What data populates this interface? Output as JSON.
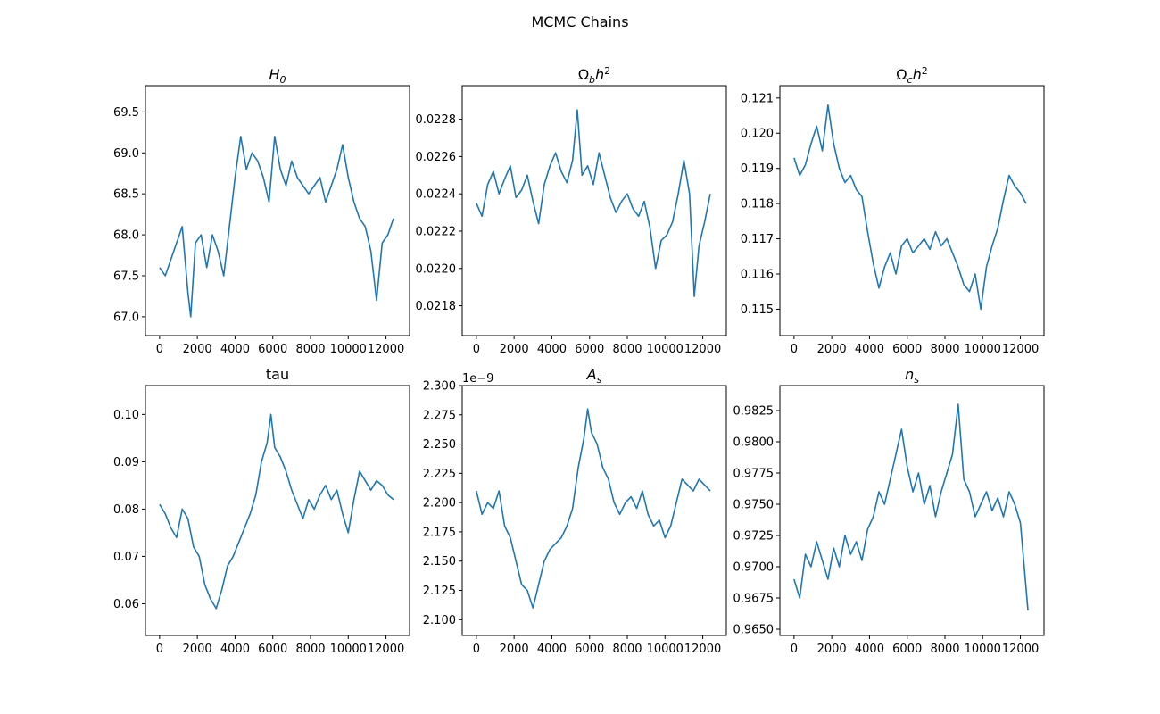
{
  "figure": {
    "title": "MCMC Chains"
  },
  "chart_data": [
    {
      "type": "line",
      "title": "H_0",
      "title_base": "H",
      "title_sub": "0",
      "title_sup": "",
      "xlim": [
        -750,
        13250
      ],
      "ylim": [
        66.77,
        69.82
      ],
      "xticks": [
        0,
        2000,
        4000,
        6000,
        8000,
        10000,
        12000
      ],
      "xtick_labels": [
        "0",
        "2000",
        "4000",
        "6000",
        "8000",
        "10000",
        "12000"
      ],
      "yticks": [
        67.0,
        67.5,
        68.0,
        68.5,
        69.0,
        69.5
      ],
      "ytick_labels": [
        "67.0",
        "67.5",
        "68.0",
        "68.5",
        "69.0",
        "69.5"
      ],
      "offset_label": "",
      "grid": false,
      "color": "#1f77b4",
      "series": [
        {
          "x": [
            0,
            300,
            600,
            900,
            1200,
            1500,
            1650,
            1900,
            2200,
            2500,
            2800,
            3100,
            3400,
            3700,
            4000,
            4300,
            4600,
            4900,
            5200,
            5500,
            5800,
            6100,
            6400,
            6700,
            7000,
            7300,
            7600,
            7900,
            8200,
            8500,
            8800,
            9100,
            9400,
            9700,
            10000,
            10300,
            10600,
            10900,
            11200,
            11500,
            11800,
            12100,
            12400
          ],
          "values": [
            67.6,
            67.5,
            67.7,
            67.9,
            68.1,
            67.3,
            67.0,
            67.9,
            68.0,
            67.6,
            68.0,
            67.8,
            67.5,
            68.1,
            68.7,
            69.2,
            68.8,
            69.0,
            68.9,
            68.7,
            68.4,
            69.2,
            68.8,
            68.6,
            68.9,
            68.7,
            68.6,
            68.5,
            68.6,
            68.7,
            68.4,
            68.6,
            68.8,
            69.1,
            68.7,
            68.4,
            68.2,
            68.1,
            67.8,
            67.2,
            67.9,
            68.0,
            68.2
          ]
        }
      ]
    },
    {
      "type": "line",
      "title": "Ω_b h^2",
      "title_base": "Ωb",
      "title_sub": "b",
      "title_sup": "2",
      "xlim": [
        -750,
        13250
      ],
      "ylim": [
        0.02164,
        0.02298
      ],
      "xticks": [
        0,
        2000,
        4000,
        6000,
        8000,
        10000,
        12000
      ],
      "xtick_labels": [
        "0",
        "2000",
        "4000",
        "6000",
        "8000",
        "10000",
        "12000"
      ],
      "yticks": [
        0.0218,
        0.022,
        0.0222,
        0.0224,
        0.0226,
        0.0228
      ],
      "ytick_labels": [
        "0.0218",
        "0.0220",
        "0.0222",
        "0.0224",
        "0.0226",
        "0.0228"
      ],
      "offset_label": "",
      "grid": false,
      "color": "#1f77b4",
      "series": [
        {
          "x": [
            0,
            300,
            600,
            900,
            1200,
            1500,
            1800,
            2100,
            2400,
            2700,
            3000,
            3300,
            3600,
            3900,
            4200,
            4500,
            4800,
            5100,
            5350,
            5600,
            5900,
            6200,
            6500,
            6800,
            7100,
            7400,
            7700,
            8000,
            8300,
            8600,
            8900,
            9200,
            9500,
            9800,
            10100,
            10400,
            10700,
            11000,
            11300,
            11550,
            11800,
            12100,
            12400
          ],
          "values": [
            0.02235,
            0.02228,
            0.02245,
            0.02252,
            0.0224,
            0.02248,
            0.02255,
            0.02238,
            0.02242,
            0.0225,
            0.02236,
            0.02224,
            0.02245,
            0.02255,
            0.02262,
            0.02252,
            0.02246,
            0.02258,
            0.02285,
            0.0225,
            0.02255,
            0.02245,
            0.02262,
            0.0225,
            0.02238,
            0.0223,
            0.02236,
            0.0224,
            0.02232,
            0.02228,
            0.02236,
            0.02222,
            0.022,
            0.02215,
            0.02218,
            0.02225,
            0.0224,
            0.02258,
            0.0224,
            0.02185,
            0.02212,
            0.02225,
            0.0224
          ]
        }
      ]
    },
    {
      "type": "line",
      "title": "Ω_c h^2",
      "title_base": "Ω",
      "title_sub": "c",
      "title_sup": "2",
      "xlim": [
        -750,
        13250
      ],
      "ylim": [
        0.11425,
        0.12135
      ],
      "xticks": [
        0,
        2000,
        4000,
        6000,
        8000,
        10000,
        12000
      ],
      "xtick_labels": [
        "0",
        "2000",
        "4000",
        "6000",
        "8000",
        "10000",
        "12000"
      ],
      "yticks": [
        0.115,
        0.116,
        0.117,
        0.118,
        0.119,
        0.12,
        0.121
      ],
      "ytick_labels": [
        "0.115",
        "0.116",
        "0.117",
        "0.118",
        "0.119",
        "0.120",
        "0.121"
      ],
      "offset_label": "",
      "grid": false,
      "color": "#1f77b4",
      "series": [
        {
          "x": [
            0,
            300,
            600,
            900,
            1200,
            1500,
            1800,
            2100,
            2400,
            2700,
            3000,
            3300,
            3600,
            3900,
            4200,
            4500,
            4800,
            5100,
            5400,
            5700,
            6000,
            6300,
            6600,
            6900,
            7200,
            7500,
            7800,
            8100,
            8400,
            8700,
            9000,
            9300,
            9600,
            9900,
            10200,
            10500,
            10800,
            11100,
            11400,
            11700,
            12000,
            12300
          ],
          "values": [
            0.1193,
            0.1188,
            0.1191,
            0.1197,
            0.1202,
            0.1195,
            0.1208,
            0.1197,
            0.119,
            0.1186,
            0.1188,
            0.1184,
            0.1182,
            0.1172,
            0.1163,
            0.1156,
            0.1162,
            0.1166,
            0.116,
            0.1168,
            0.117,
            0.1166,
            0.1168,
            0.117,
            0.1167,
            0.1172,
            0.1168,
            0.117,
            0.1166,
            0.1162,
            0.1157,
            0.1155,
            0.116,
            0.115,
            0.1162,
            0.1168,
            0.1173,
            0.1181,
            0.1188,
            0.1185,
            0.1183,
            0.118
          ]
        }
      ]
    },
    {
      "type": "line",
      "title": "tau",
      "title_base": "tau",
      "title_sub": "",
      "title_sup": "",
      "xlim": [
        -750,
        13250
      ],
      "ylim": [
        0.0533,
        0.1061
      ],
      "xticks": [
        0,
        2000,
        4000,
        6000,
        8000,
        10000,
        12000
      ],
      "xtick_labels": [
        "0",
        "2000",
        "4000",
        "6000",
        "8000",
        "10000",
        "12000"
      ],
      "yticks": [
        0.06,
        0.07,
        0.08,
        0.09,
        0.1
      ],
      "ytick_labels": [
        "0.06",
        "0.07",
        "0.08",
        "0.09",
        "0.10"
      ],
      "offset_label": "",
      "grid": false,
      "color": "#1f77b4",
      "series": [
        {
          "x": [
            0,
            300,
            600,
            900,
            1200,
            1500,
            1800,
            2100,
            2400,
            2700,
            3000,
            3300,
            3600,
            3900,
            4200,
            4500,
            4800,
            5100,
            5400,
            5700,
            5900,
            6100,
            6400,
            6700,
            7000,
            7300,
            7600,
            7900,
            8200,
            8500,
            8800,
            9100,
            9400,
            9700,
            10000,
            10300,
            10600,
            10900,
            11200,
            11500,
            11800,
            12100,
            12400
          ],
          "values": [
            0.081,
            0.079,
            0.076,
            0.074,
            0.08,
            0.078,
            0.072,
            0.07,
            0.064,
            0.061,
            0.059,
            0.063,
            0.068,
            0.07,
            0.073,
            0.076,
            0.079,
            0.083,
            0.09,
            0.094,
            0.1,
            0.093,
            0.091,
            0.088,
            0.084,
            0.081,
            0.078,
            0.082,
            0.08,
            0.083,
            0.085,
            0.082,
            0.084,
            0.079,
            0.075,
            0.082,
            0.088,
            0.086,
            0.084,
            0.086,
            0.085,
            0.083,
            0.082
          ]
        }
      ]
    },
    {
      "type": "line",
      "title": "A_s",
      "title_base": "A",
      "title_sub": "s",
      "title_sup": "",
      "xlim": [
        -750,
        13250
      ],
      "ylim": [
        2.0865e-09,
        2.3e-09
      ],
      "xticks": [
        0,
        2000,
        4000,
        6000,
        8000,
        10000,
        12000
      ],
      "xtick_labels": [
        "0",
        "2000",
        "4000",
        "6000",
        "8000",
        "10000",
        "12000"
      ],
      "yticks": [
        2.1e-09,
        2.125e-09,
        2.15e-09,
        2.175e-09,
        2.2e-09,
        2.225e-09,
        2.25e-09,
        2.275e-09,
        2.3e-09
      ],
      "ytick_labels": [
        "2.100",
        "2.125",
        "2.150",
        "2.175",
        "2.200",
        "2.225",
        "2.250",
        "2.275",
        "2.300"
      ],
      "offset_label": "1e−9",
      "grid": false,
      "color": "#1f77b4",
      "series": [
        {
          "x": [
            0,
            300,
            600,
            900,
            1200,
            1500,
            1800,
            2100,
            2400,
            2700,
            3000,
            3300,
            3600,
            3900,
            4200,
            4500,
            4800,
            5100,
            5400,
            5700,
            5900,
            6100,
            6400,
            6700,
            7000,
            7300,
            7600,
            7900,
            8200,
            8500,
            8800,
            9100,
            9400,
            9700,
            10000,
            10300,
            10600,
            10900,
            11200,
            11500,
            11800,
            12100,
            12400
          ],
          "values": [
            2.21e-09,
            2.19e-09,
            2.2e-09,
            2.195e-09,
            2.21e-09,
            2.18e-09,
            2.17e-09,
            2.15e-09,
            2.13e-09,
            2.125e-09,
            2.11e-09,
            2.13e-09,
            2.15e-09,
            2.16e-09,
            2.165e-09,
            2.17e-09,
            2.18e-09,
            2.195e-09,
            2.23e-09,
            2.255e-09,
            2.28e-09,
            2.26e-09,
            2.25e-09,
            2.23e-09,
            2.22e-09,
            2.2e-09,
            2.19e-09,
            2.2e-09,
            2.205e-09,
            2.195e-09,
            2.21e-09,
            2.19e-09,
            2.18e-09,
            2.185e-09,
            2.17e-09,
            2.18e-09,
            2.2e-09,
            2.22e-09,
            2.215e-09,
            2.21e-09,
            2.22e-09,
            2.215e-09,
            2.21e-09
          ]
        }
      ]
    },
    {
      "type": "line",
      "title": "n_s",
      "title_base": "n",
      "title_sub": "s",
      "title_sup": "",
      "xlim": [
        -750,
        13250
      ],
      "ylim": [
        0.9645,
        0.9845
      ],
      "xticks": [
        0,
        2000,
        4000,
        6000,
        8000,
        10000,
        12000
      ],
      "xtick_labels": [
        "0",
        "2000",
        "4000",
        "6000",
        "8000",
        "10000",
        "12000"
      ],
      "yticks": [
        0.965,
        0.9675,
        0.97,
        0.9725,
        0.975,
        0.9775,
        0.98,
        0.9825
      ],
      "ytick_labels": [
        "0.9650",
        "0.9675",
        "0.9700",
        "0.9725",
        "0.9750",
        "0.9775",
        "0.9800",
        "0.9825"
      ],
      "offset_label": "",
      "grid": false,
      "color": "#1f77b4",
      "series": [
        {
          "x": [
            0,
            300,
            600,
            900,
            1200,
            1500,
            1800,
            2100,
            2400,
            2700,
            3000,
            3300,
            3600,
            3900,
            4200,
            4500,
            4800,
            5100,
            5400,
            5700,
            6000,
            6300,
            6600,
            6900,
            7200,
            7500,
            7800,
            8100,
            8400,
            8700,
            9000,
            9300,
            9600,
            9900,
            10200,
            10500,
            10800,
            11100,
            11400,
            11700,
            12000,
            12200,
            12400
          ],
          "values": [
            0.969,
            0.9675,
            0.971,
            0.97,
            0.972,
            0.9705,
            0.969,
            0.9715,
            0.97,
            0.9725,
            0.971,
            0.972,
            0.9705,
            0.973,
            0.974,
            0.976,
            0.975,
            0.977,
            0.979,
            0.981,
            0.978,
            0.976,
            0.9775,
            0.975,
            0.9765,
            0.974,
            0.976,
            0.9775,
            0.979,
            0.983,
            0.977,
            0.976,
            0.974,
            0.975,
            0.976,
            0.9745,
            0.9755,
            0.974,
            0.976,
            0.975,
            0.9735,
            0.97,
            0.9665
          ]
        }
      ]
    }
  ]
}
